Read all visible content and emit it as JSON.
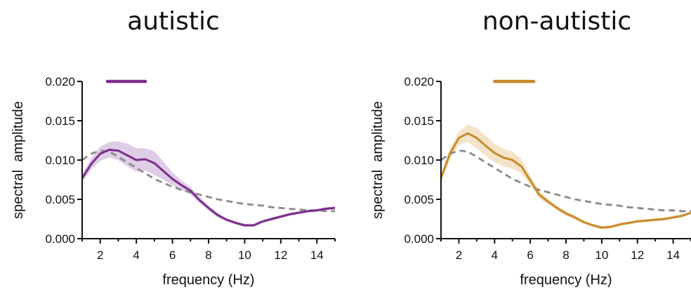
{
  "chart_data": [
    {
      "type": "line",
      "title": "autistic",
      "xlabel": "frequency (Hz)",
      "ylabel": "spectral  amplitude",
      "xlim": [
        1,
        15
      ],
      "ylim": [
        0,
        0.02
      ],
      "xticks": [
        "2",
        "4",
        "6",
        "8",
        "10",
        "12",
        "14"
      ],
      "yticks": [
        "0.000",
        "0.005",
        "0.010",
        "0.015",
        "0.020"
      ],
      "color": "#7a2e8e",
      "band_color": "#d8c4e2",
      "significance_bar": [
        2.4,
        4.5
      ],
      "series": [
        {
          "x": [
            1,
            1.5,
            2,
            2.5,
            3,
            3.5,
            4,
            4.5,
            5,
            5.5,
            6,
            6.5,
            7,
            7.5,
            8,
            8.5,
            9,
            9.5,
            10,
            10.5,
            11,
            11.5,
            12,
            12.5,
            13,
            13.5,
            14,
            14.5,
            15
          ],
          "y": [
            0.0077,
            0.0095,
            0.0108,
            0.0113,
            0.0112,
            0.0106,
            0.01,
            0.0101,
            0.0096,
            0.0086,
            0.0076,
            0.0068,
            0.0061,
            0.0049,
            0.0039,
            0.003,
            0.0024,
            0.002,
            0.0017,
            0.0017,
            0.0022,
            0.0025,
            0.0028,
            0.0031,
            0.0033,
            0.0035,
            0.0036,
            0.0038,
            0.0039
          ],
          "band_upper": [
            0.0082,
            0.0102,
            0.0117,
            0.0123,
            0.0124,
            0.0121,
            0.0115,
            0.0115,
            0.0111,
            0.0098,
            0.0084,
            0.0074,
            0.0066,
            0.0053,
            0.0042,
            0.0033,
            0.0026,
            0.0022,
            0.0019,
            0.0019,
            0.0024,
            0.0027,
            0.003,
            0.0033,
            0.0035,
            0.0037,
            0.0038,
            0.004,
            0.0041
          ],
          "band_lower": [
            0.0072,
            0.0088,
            0.0099,
            0.0103,
            0.01,
            0.0092,
            0.0085,
            0.0087,
            0.0081,
            0.0075,
            0.0068,
            0.0062,
            0.0056,
            0.0045,
            0.0036,
            0.0027,
            0.0022,
            0.0018,
            0.0015,
            0.0015,
            0.002,
            0.0023,
            0.0026,
            0.0029,
            0.0031,
            0.0033,
            0.0034,
            0.0036,
            0.0037
          ]
        },
        {
          "style": "dashed",
          "x": [
            1,
            1.5,
            2,
            2.5,
            3,
            3.5,
            4,
            4.5,
            5,
            5.5,
            6,
            6.5,
            7,
            7.5,
            8,
            8.5,
            9,
            9.5,
            10,
            10.5,
            11,
            11.5,
            12,
            12.5,
            13,
            13.5,
            14,
            14.5,
            15
          ],
          "y": [
            0.01,
            0.0108,
            0.0112,
            0.0111,
            0.0104,
            0.0097,
            0.009,
            0.0083,
            0.0076,
            0.0071,
            0.0066,
            0.0062,
            0.0059,
            0.0056,
            0.0053,
            0.005,
            0.0048,
            0.0046,
            0.0044,
            0.0043,
            0.0042,
            0.004,
            0.0039,
            0.0038,
            0.0037,
            0.0036,
            0.0036,
            0.0035,
            0.0035
          ]
        }
      ]
    },
    {
      "type": "line",
      "title": "non-autistic",
      "xlabel": "frequency (Hz)",
      "ylabel": "spectral  amplitude",
      "xlim": [
        1,
        15
      ],
      "ylim": [
        0,
        0.02
      ],
      "xticks": [
        "2",
        "4",
        "6",
        "8",
        "10",
        "12",
        "14"
      ],
      "yticks": [
        "0.000",
        "0.005",
        "0.010",
        "0.015",
        "0.020"
      ],
      "color": "#c88a2c",
      "band_color": "#f1dfbf",
      "significance_bar": [
        4,
        6.2
      ],
      "series": [
        {
          "x": [
            1,
            1.5,
            2,
            2.5,
            3,
            3.5,
            4,
            4.5,
            5,
            5.5,
            6,
            6.5,
            7,
            7.5,
            8,
            8.5,
            9,
            9.5,
            10,
            10.5,
            11,
            11.5,
            12,
            12.5,
            13,
            13.5,
            14,
            14.5,
            15
          ],
          "y": [
            0.0077,
            0.0108,
            0.0128,
            0.0134,
            0.0128,
            0.0118,
            0.0109,
            0.0103,
            0.01,
            0.0092,
            0.0074,
            0.0056,
            0.0047,
            0.0039,
            0.0032,
            0.0027,
            0.0021,
            0.0017,
            0.0014,
            0.0015,
            0.0018,
            0.002,
            0.0022,
            0.0023,
            0.0024,
            0.0025,
            0.0027,
            0.0029,
            0.0033
          ],
          "band_upper": [
            0.0082,
            0.0115,
            0.0137,
            0.0145,
            0.0141,
            0.0131,
            0.0121,
            0.0114,
            0.0111,
            0.0101,
            0.008,
            0.0061,
            0.0051,
            0.0042,
            0.0035,
            0.003,
            0.0023,
            0.0019,
            0.0016,
            0.0017,
            0.002,
            0.0022,
            0.0024,
            0.0025,
            0.0026,
            0.0027,
            0.0029,
            0.0031,
            0.0035
          ],
          "band_lower": [
            0.0072,
            0.0101,
            0.0119,
            0.0123,
            0.0115,
            0.0105,
            0.0097,
            0.0092,
            0.0089,
            0.0083,
            0.0068,
            0.0051,
            0.0043,
            0.0036,
            0.0029,
            0.0024,
            0.0019,
            0.0015,
            0.0012,
            0.0013,
            0.0016,
            0.0018,
            0.002,
            0.0021,
            0.0022,
            0.0023,
            0.0025,
            0.0027,
            0.0031
          ]
        },
        {
          "style": "dashed",
          "x": [
            1,
            1.5,
            2,
            2.5,
            3,
            3.5,
            4,
            4.5,
            5,
            5.5,
            6,
            6.5,
            7,
            7.5,
            8,
            8.5,
            9,
            9.5,
            10,
            10.5,
            11,
            11.5,
            12,
            12.5,
            13,
            13.5,
            14,
            14.5,
            15
          ],
          "y": [
            0.01,
            0.0108,
            0.0112,
            0.0111,
            0.0104,
            0.0097,
            0.009,
            0.0083,
            0.0076,
            0.0071,
            0.0066,
            0.0062,
            0.0059,
            0.0056,
            0.0053,
            0.005,
            0.0048,
            0.0046,
            0.0044,
            0.0043,
            0.0042,
            0.004,
            0.0039,
            0.0038,
            0.0037,
            0.0036,
            0.0036,
            0.0035,
            0.0035
          ]
        }
      ]
    }
  ]
}
